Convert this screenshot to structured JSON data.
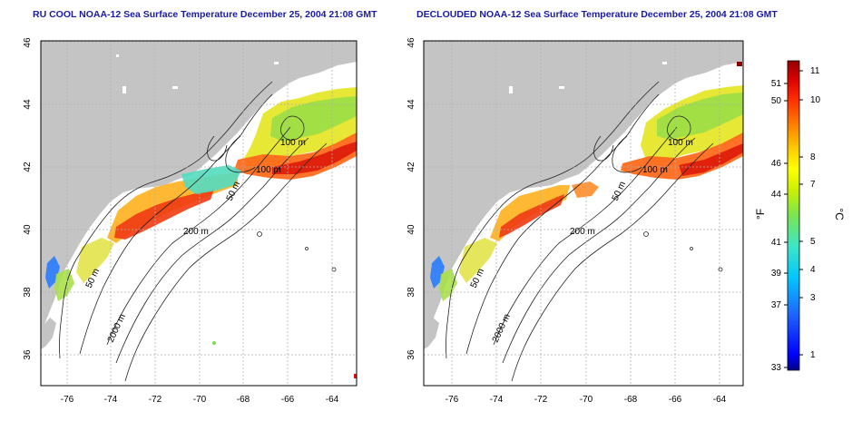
{
  "titles": {
    "left": "RU COOL NOAA-12 Sea Surface Temperature December 25, 2004 21:08 GMT",
    "right": "DECLOUDED NOAA-12 Sea Surface Temperature December 25, 2004 21:08 GMT"
  },
  "map": {
    "lon_ticks": [
      "-76",
      "-74",
      "-72",
      "-70",
      "-68",
      "-66",
      "-64"
    ],
    "lat_ticks": [
      "36",
      "38",
      "40",
      "42",
      "44",
      "46"
    ],
    "lon_range": [
      -77.2,
      -62.8
    ],
    "lat_range": [
      35.0,
      46.0
    ],
    "contour_labels": {
      "left": [
        "100 m",
        "100 m",
        "50 m",
        "200 m",
        "50 m",
        "2000 m"
      ],
      "right": [
        "100 m",
        "100 m",
        "50 m",
        "200 m",
        "50 m",
        "2000 m"
      ]
    },
    "colors": {
      "land": "#c4c4c4",
      "ocean": "#ffffff",
      "contour": "#222222",
      "grid": "#b0b0b0"
    }
  },
  "colorbar": {
    "fahrenheit_ticks": [
      "51",
      "50",
      "46",
      "44",
      "41",
      "39",
      "37",
      "33"
    ],
    "celsius_ticks": [
      "11",
      "10",
      "8",
      "7",
      "5",
      "4",
      "3",
      "1"
    ],
    "fahrenheit_label": "°F",
    "celsius_label": "°C",
    "range_c": [
      0.5,
      11.5
    ],
    "stops": [
      "#00008a",
      "#0000ff",
      "#1e64ff",
      "#00c8ff",
      "#3ce6c8",
      "#78e650",
      "#c8f000",
      "#ffff00",
      "#ffc800",
      "#ff7800",
      "#ff2800",
      "#dc0000",
      "#960000"
    ]
  }
}
